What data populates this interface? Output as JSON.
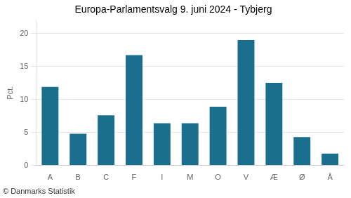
{
  "chart_data": {
    "type": "bar",
    "title": "Europa-Parlamentsvalg 9. juni 2024 - Tybjerg",
    "categories": [
      "A",
      "B",
      "C",
      "F",
      "I",
      "M",
      "O",
      "V",
      "Æ",
      "Ø",
      "Å"
    ],
    "values": [
      11.9,
      4.8,
      7.6,
      16.7,
      6.4,
      6.4,
      8.9,
      19.0,
      12.5,
      4.3,
      1.8
    ],
    "color": "#1a6e8e",
    "ylabel": "Pct.",
    "ylim": [
      0,
      22
    ],
    "yticks": [
      0,
      5,
      10,
      15,
      20
    ],
    "grid": true,
    "footer": "© Danmarks Statistik"
  }
}
